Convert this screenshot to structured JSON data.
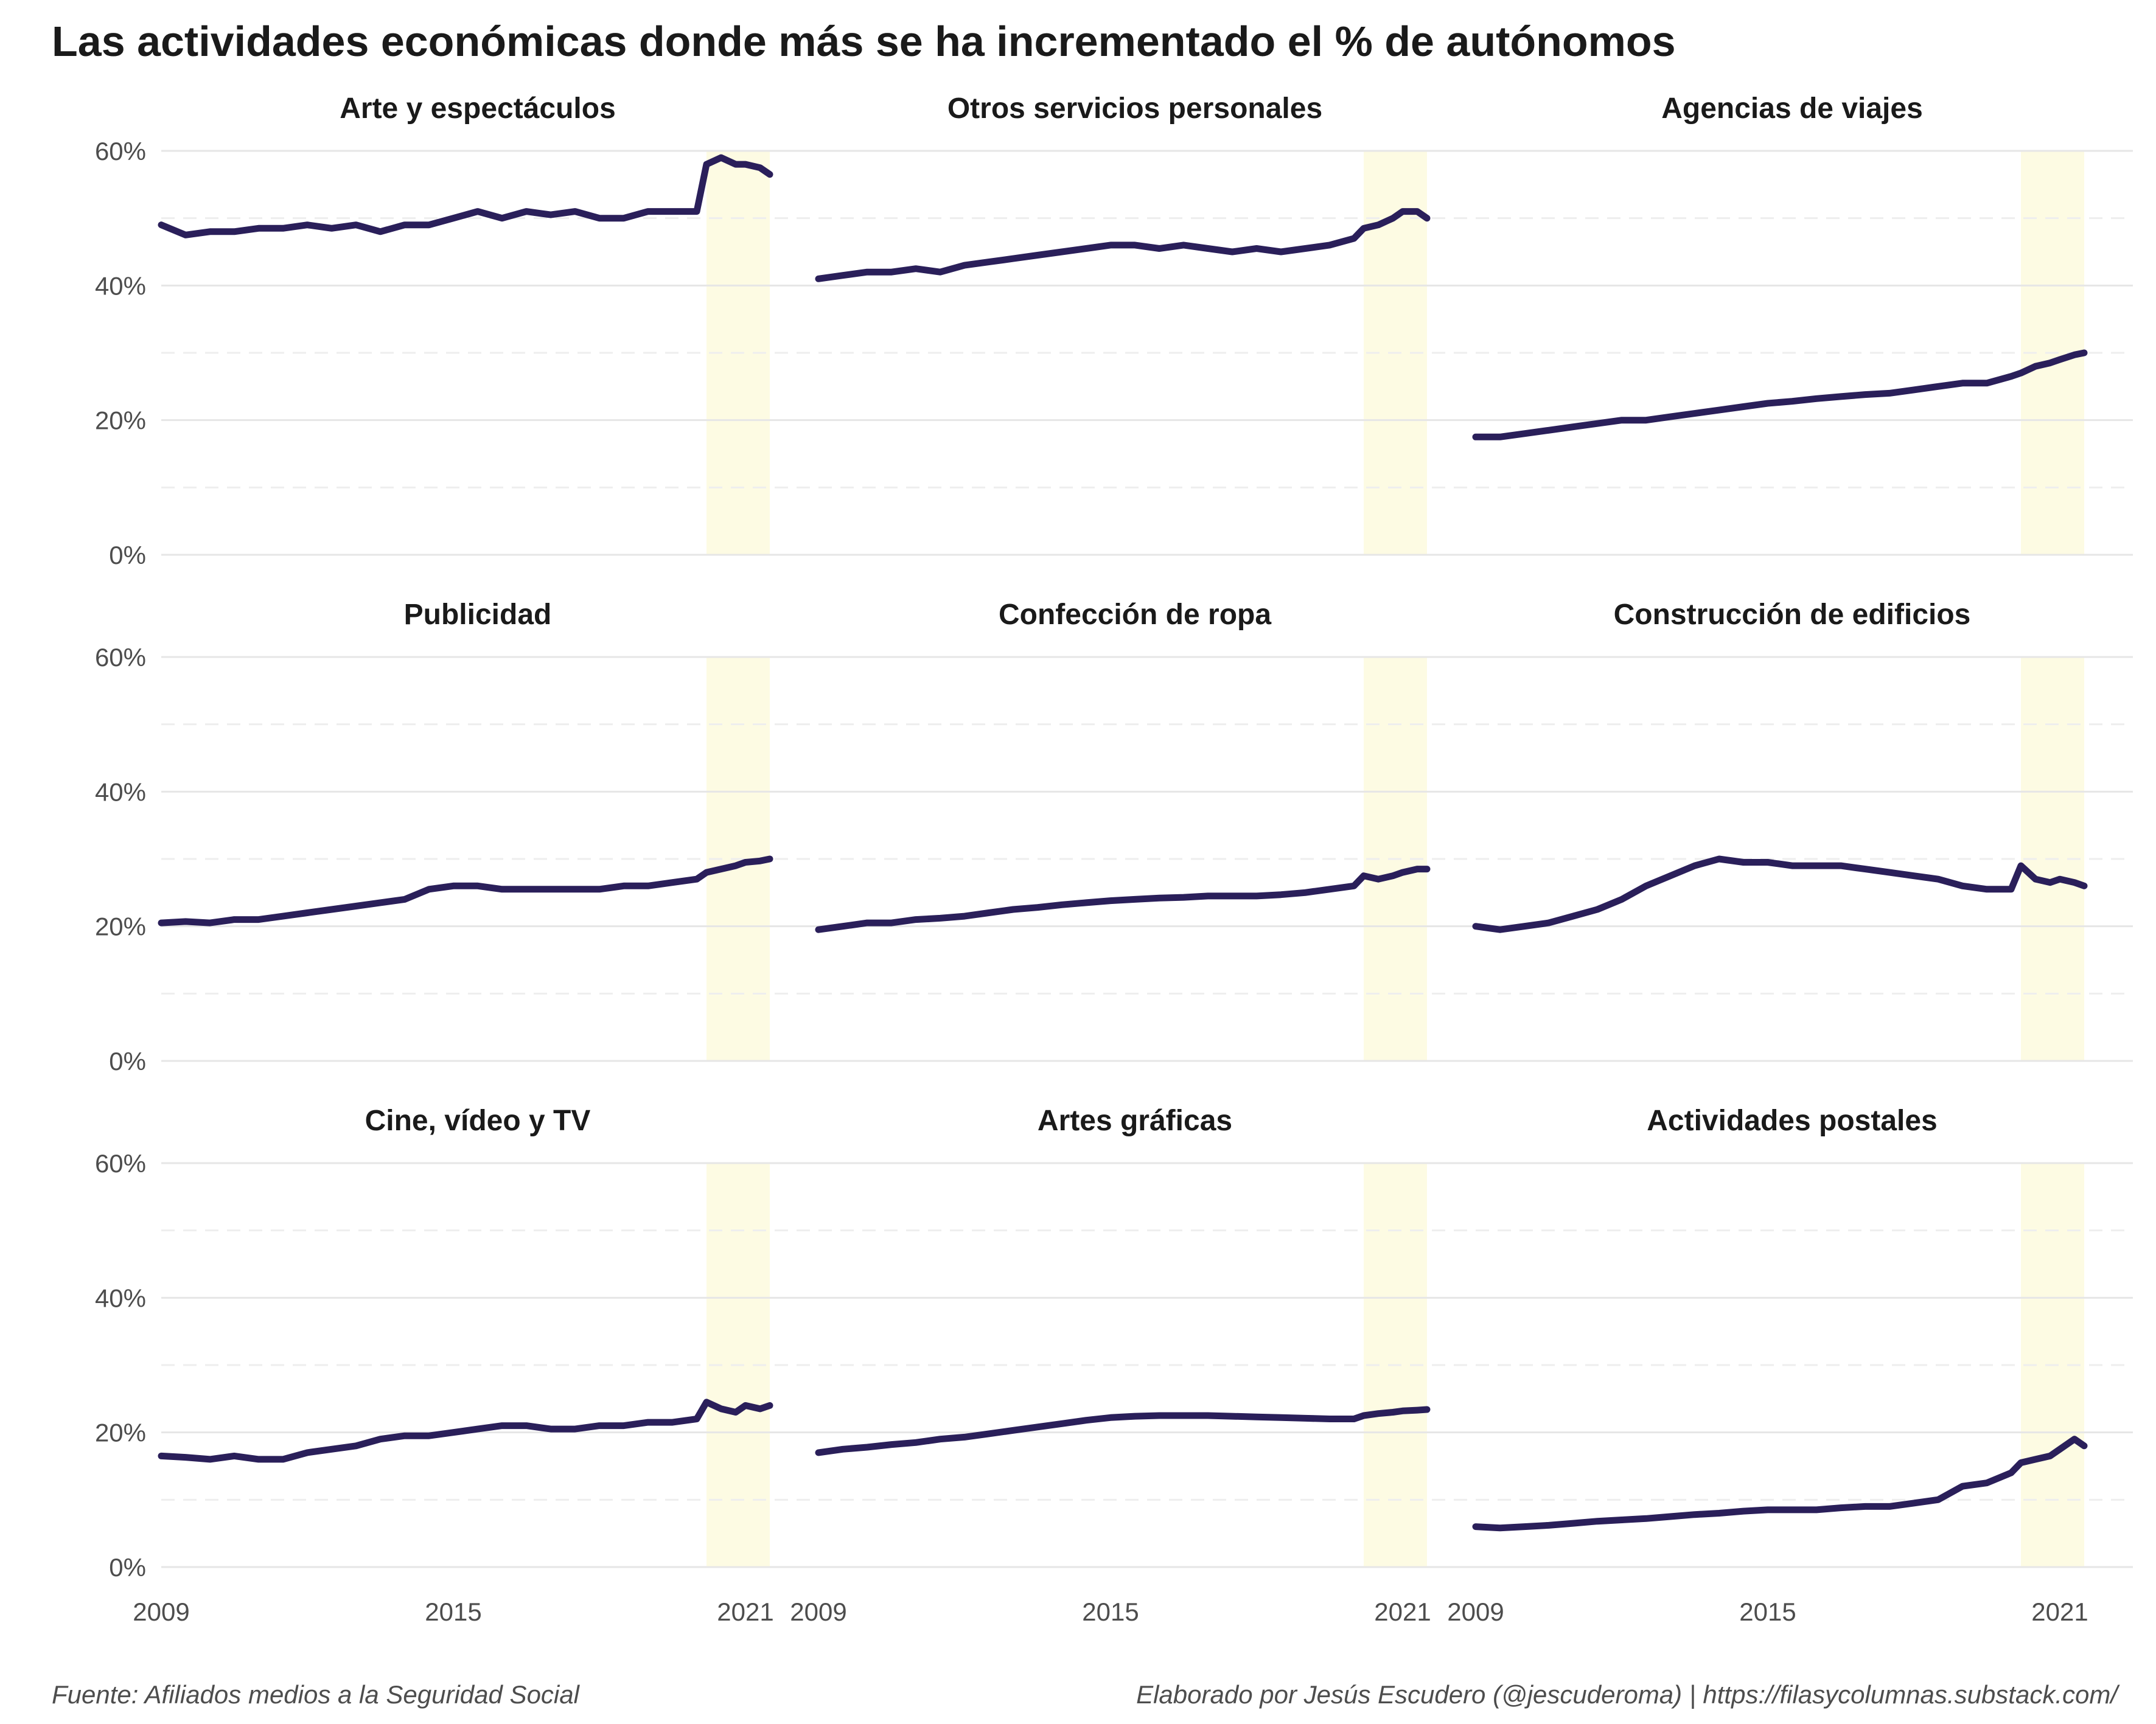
{
  "title": "Las actividades económicas donde más se ha incrementado el % de autónomos",
  "caption_left": "Fuente: Afiliados medios a la Seguridad Social",
  "caption_right": "Elaborado por Jesús Escudero (@jescuderoma) | https://filasycolumnas.substack.com/",
  "colors": {
    "line": "#2a1f5a",
    "highlight": "#fdfbe3",
    "grid_major": "#e6e6e6",
    "grid_minor": "#eeeeee",
    "text": "#1a1a1a",
    "tick": "#4d4d4d"
  },
  "chart_data": {
    "type": "line",
    "facets": "3x3, shared axes",
    "x_range": [
      2009,
      2022
    ],
    "y_range": [
      0,
      0.6
    ],
    "x_ticks": [
      "2009",
      "2015",
      "2021"
    ],
    "y_ticks": [
      "0%",
      "20%",
      "40%",
      "60%"
    ],
    "grid": "major solid, minor dashed",
    "highlight_band": [
      2020.2,
      2021.5
    ],
    "panels": [
      {
        "name": "Arte y espectáculos",
        "x": [
          2009.0,
          2009.5,
          2010.0,
          2010.5,
          2011.0,
          2011.5,
          2012.0,
          2012.5,
          2013.0,
          2013.5,
          2014.0,
          2014.5,
          2015.0,
          2015.5,
          2016.0,
          2016.5,
          2017.0,
          2017.5,
          2018.0,
          2018.5,
          2019.0,
          2019.5,
          2020.0,
          2020.2,
          2020.5,
          2020.8,
          2021.0,
          2021.3,
          2021.5
        ],
        "y": [
          0.49,
          0.475,
          0.48,
          0.48,
          0.485,
          0.485,
          0.49,
          0.485,
          0.49,
          0.48,
          0.49,
          0.49,
          0.5,
          0.51,
          0.5,
          0.51,
          0.505,
          0.51,
          0.5,
          0.5,
          0.51,
          0.51,
          0.51,
          0.58,
          0.59,
          0.58,
          0.58,
          0.575,
          0.565
        ]
      },
      {
        "name": "Otros servicios personales",
        "x": [
          2009.0,
          2009.5,
          2010.0,
          2010.5,
          2011.0,
          2011.5,
          2012.0,
          2012.5,
          2013.0,
          2013.5,
          2014.0,
          2014.5,
          2015.0,
          2015.5,
          2016.0,
          2016.5,
          2017.0,
          2017.5,
          2018.0,
          2018.5,
          2019.0,
          2019.5,
          2020.0,
          2020.2,
          2020.5,
          2020.8,
          2021.0,
          2021.3,
          2021.5
        ],
        "y": [
          0.41,
          0.415,
          0.42,
          0.42,
          0.425,
          0.42,
          0.43,
          0.435,
          0.44,
          0.445,
          0.45,
          0.455,
          0.46,
          0.46,
          0.455,
          0.46,
          0.455,
          0.45,
          0.455,
          0.45,
          0.455,
          0.46,
          0.47,
          0.485,
          0.49,
          0.5,
          0.51,
          0.51,
          0.5
        ]
      },
      {
        "name": "Agencias de viajes",
        "x": [
          2009.0,
          2009.5,
          2010.0,
          2010.5,
          2011.0,
          2011.5,
          2012.0,
          2012.5,
          2013.0,
          2013.5,
          2014.0,
          2014.5,
          2015.0,
          2015.5,
          2016.0,
          2016.5,
          2017.0,
          2017.5,
          2018.0,
          2018.5,
          2019.0,
          2019.5,
          2020.0,
          2020.2,
          2020.5,
          2020.8,
          2021.0,
          2021.3,
          2021.5
        ],
        "y": [
          0.175,
          0.175,
          0.18,
          0.185,
          0.19,
          0.195,
          0.2,
          0.2,
          0.205,
          0.21,
          0.215,
          0.22,
          0.225,
          0.228,
          0.232,
          0.235,
          0.238,
          0.24,
          0.245,
          0.25,
          0.255,
          0.255,
          0.265,
          0.27,
          0.28,
          0.285,
          0.29,
          0.297,
          0.3
        ]
      },
      {
        "name": "Publicidad",
        "x": [
          2009.0,
          2009.5,
          2010.0,
          2010.5,
          2011.0,
          2011.5,
          2012.0,
          2012.5,
          2013.0,
          2013.5,
          2014.0,
          2014.5,
          2015.0,
          2015.5,
          2016.0,
          2016.5,
          2017.0,
          2017.5,
          2018.0,
          2018.5,
          2019.0,
          2019.5,
          2020.0,
          2020.2,
          2020.5,
          2020.8,
          2021.0,
          2021.3,
          2021.5
        ],
        "y": [
          0.205,
          0.207,
          0.205,
          0.21,
          0.21,
          0.215,
          0.22,
          0.225,
          0.23,
          0.235,
          0.24,
          0.255,
          0.26,
          0.26,
          0.255,
          0.255,
          0.255,
          0.255,
          0.255,
          0.26,
          0.26,
          0.265,
          0.27,
          0.28,
          0.285,
          0.29,
          0.295,
          0.297,
          0.3
        ]
      },
      {
        "name": "Confección de ropa",
        "x": [
          2009.0,
          2009.5,
          2010.0,
          2010.5,
          2011.0,
          2011.5,
          2012.0,
          2012.5,
          2013.0,
          2013.5,
          2014.0,
          2014.5,
          2015.0,
          2015.5,
          2016.0,
          2016.5,
          2017.0,
          2017.5,
          2018.0,
          2018.5,
          2019.0,
          2019.5,
          2020.0,
          2020.2,
          2020.5,
          2020.8,
          2021.0,
          2021.3,
          2021.5
        ],
        "y": [
          0.195,
          0.2,
          0.205,
          0.205,
          0.21,
          0.212,
          0.215,
          0.22,
          0.225,
          0.228,
          0.232,
          0.235,
          0.238,
          0.24,
          0.242,
          0.243,
          0.245,
          0.245,
          0.245,
          0.247,
          0.25,
          0.255,
          0.26,
          0.275,
          0.27,
          0.275,
          0.28,
          0.285,
          0.285
        ]
      },
      {
        "name": "Construcción de edificios",
        "x": [
          2009.0,
          2009.5,
          2010.0,
          2010.5,
          2011.0,
          2011.5,
          2012.0,
          2012.5,
          2013.0,
          2013.5,
          2014.0,
          2014.5,
          2015.0,
          2015.5,
          2016.0,
          2016.5,
          2017.0,
          2017.5,
          2018.0,
          2018.5,
          2019.0,
          2019.5,
          2020.0,
          2020.2,
          2020.5,
          2020.8,
          2021.0,
          2021.3,
          2021.5
        ],
        "y": [
          0.2,
          0.195,
          0.2,
          0.205,
          0.215,
          0.225,
          0.24,
          0.26,
          0.275,
          0.29,
          0.3,
          0.295,
          0.295,
          0.29,
          0.29,
          0.29,
          0.285,
          0.28,
          0.275,
          0.27,
          0.26,
          0.255,
          0.255,
          0.29,
          0.27,
          0.265,
          0.27,
          0.265,
          0.26
        ]
      },
      {
        "name": "Cine, vídeo y TV",
        "x": [
          2009.0,
          2009.5,
          2010.0,
          2010.5,
          2011.0,
          2011.5,
          2012.0,
          2012.5,
          2013.0,
          2013.5,
          2014.0,
          2014.5,
          2015.0,
          2015.5,
          2016.0,
          2016.5,
          2017.0,
          2017.5,
          2018.0,
          2018.5,
          2019.0,
          2019.5,
          2020.0,
          2020.2,
          2020.5,
          2020.8,
          2021.0,
          2021.3,
          2021.5
        ],
        "y": [
          0.165,
          0.163,
          0.16,
          0.165,
          0.16,
          0.16,
          0.17,
          0.175,
          0.18,
          0.19,
          0.195,
          0.195,
          0.2,
          0.205,
          0.21,
          0.21,
          0.205,
          0.205,
          0.21,
          0.21,
          0.215,
          0.215,
          0.22,
          0.245,
          0.235,
          0.23,
          0.24,
          0.235,
          0.24
        ]
      },
      {
        "name": "Artes gráficas",
        "x": [
          2009.0,
          2009.5,
          2010.0,
          2010.5,
          2011.0,
          2011.5,
          2012.0,
          2012.5,
          2013.0,
          2013.5,
          2014.0,
          2014.5,
          2015.0,
          2015.5,
          2016.0,
          2016.5,
          2017.0,
          2017.5,
          2018.0,
          2018.5,
          2019.0,
          2019.5,
          2020.0,
          2020.2,
          2020.5,
          2020.8,
          2021.0,
          2021.3,
          2021.5
        ],
        "y": [
          0.17,
          0.175,
          0.178,
          0.182,
          0.185,
          0.19,
          0.193,
          0.198,
          0.203,
          0.208,
          0.213,
          0.218,
          0.222,
          0.224,
          0.225,
          0.225,
          0.225,
          0.224,
          0.223,
          0.222,
          0.221,
          0.22,
          0.22,
          0.225,
          0.228,
          0.23,
          0.232,
          0.233,
          0.234
        ]
      },
      {
        "name": "Actividades postales",
        "x": [
          2009.0,
          2009.5,
          2010.0,
          2010.5,
          2011.0,
          2011.5,
          2012.0,
          2012.5,
          2013.0,
          2013.5,
          2014.0,
          2014.5,
          2015.0,
          2015.5,
          2016.0,
          2016.5,
          2017.0,
          2017.5,
          2018.0,
          2018.5,
          2019.0,
          2019.5,
          2020.0,
          2020.2,
          2020.5,
          2020.8,
          2021.0,
          2021.3,
          2021.5
        ],
        "y": [
          0.06,
          0.058,
          0.06,
          0.062,
          0.065,
          0.068,
          0.07,
          0.072,
          0.075,
          0.078,
          0.08,
          0.083,
          0.085,
          0.085,
          0.085,
          0.088,
          0.09,
          0.09,
          0.095,
          0.1,
          0.12,
          0.125,
          0.14,
          0.155,
          0.16,
          0.165,
          0.175,
          0.19,
          0.18
        ]
      }
    ]
  }
}
